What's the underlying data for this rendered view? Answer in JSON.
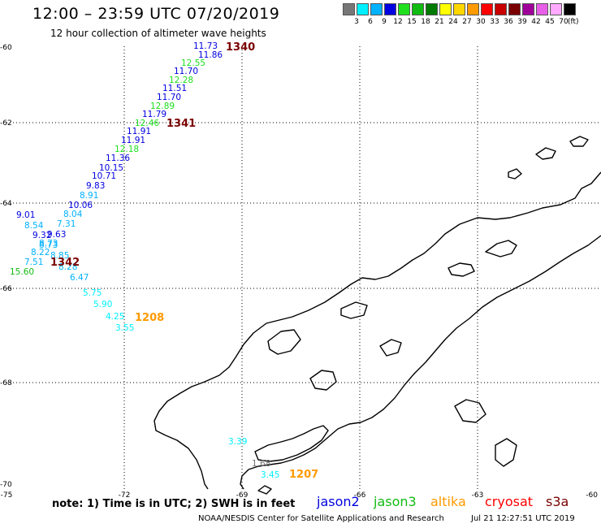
{
  "header": {
    "title": "12:00 – 23:59 UTC 07/20/2019",
    "subtitle": "12 hour collection of altimeter wave heights"
  },
  "scale": {
    "colors": [
      "#777777",
      "#00f0ff",
      "#00b2ff",
      "#0000e0",
      "#1ee01e",
      "#12bb12",
      "#007a00",
      "#ffff00",
      "#ffd700",
      "#ff9a00",
      "#ff0000",
      "#c80000",
      "#7a0000",
      "#a0009a",
      "#e85ee8",
      "#ffaaff",
      "#000000"
    ],
    "ticks": [
      "3",
      "6",
      "9",
      "12",
      "15",
      "18",
      "21",
      "24",
      "27",
      "30",
      "33",
      "36",
      "39",
      "42",
      "45",
      "70"
    ],
    "unit": "(ft)"
  },
  "axes": {
    "lat_labels": [
      "-60",
      "-62",
      "-64",
      "-66",
      "-68",
      "-70"
    ],
    "lon_labels": [
      "-75",
      "-72",
      "-69",
      "-66",
      "-63",
      "-60"
    ]
  },
  "observations": [
    {
      "text": "11.73",
      "color": "#0000e0"
    },
    {
      "text": "11.86",
      "color": "#0000e0"
    },
    {
      "text": "12.55",
      "color": "#1ee01e"
    },
    {
      "text": "11.70",
      "color": "#0000e0"
    },
    {
      "text": "12.28",
      "color": "#1ee01e"
    },
    {
      "text": "11.51",
      "color": "#0000e0"
    },
    {
      "text": "11.70",
      "color": "#0000e0"
    },
    {
      "text": "12.89",
      "color": "#1ee01e"
    },
    {
      "text": "11.79",
      "color": "#0000e0"
    },
    {
      "text": "12.46",
      "color": "#1ee01e"
    },
    {
      "text": "11.91",
      "color": "#0000e0"
    },
    {
      "text": "11.91",
      "color": "#0000e0"
    },
    {
      "text": "12.18",
      "color": "#1ee01e"
    },
    {
      "text": "11.36",
      "color": "#0000e0"
    },
    {
      "text": "10.15",
      "color": "#0000e0"
    },
    {
      "text": "10.71",
      "color": "#0000e0"
    },
    {
      "text": "9.83",
      "color": "#0000e0"
    },
    {
      "text": "8.91",
      "color": "#00b2ff"
    },
    {
      "text": "10.06",
      "color": "#0000e0"
    },
    {
      "text": "9.01",
      "color": "#0000e0"
    },
    {
      "text": "8.04",
      "color": "#00b2ff"
    },
    {
      "text": "8.54",
      "color": "#00b2ff"
    },
    {
      "text": "7.31",
      "color": "#00b2ff"
    },
    {
      "text": "9.32",
      "color": "#0000e0"
    },
    {
      "text": "9.63",
      "color": "#0000e0"
    },
    {
      "text": "8.73",
      "color": "#00b2ff"
    },
    {
      "text": "8.73",
      "color": "#00b2ff"
    },
    {
      "text": "8.22",
      "color": "#00b2ff"
    },
    {
      "text": "8.85",
      "color": "#00b2ff"
    },
    {
      "text": "7.51",
      "color": "#00b2ff"
    },
    {
      "text": "8.28",
      "color": "#00b2ff"
    },
    {
      "text": "15.60",
      "color": "#12bb12"
    },
    {
      "text": "6.47",
      "color": "#00b2ff"
    },
    {
      "text": "5.75",
      "color": "#00f0ff"
    },
    {
      "text": "5.90",
      "color": "#00f0ff"
    },
    {
      "text": "4.25",
      "color": "#00f0ff"
    },
    {
      "text": "3.55",
      "color": "#00f0ff"
    },
    {
      "text": "3.39",
      "color": "#00f0ff"
    },
    {
      "text": "1.68",
      "color": "#777777"
    },
    {
      "text": "3.45",
      "color": "#00f0ff"
    }
  ],
  "pass_times": [
    {
      "text": "1340",
      "color": "#7a0000"
    },
    {
      "text": "1341",
      "color": "#7a0000"
    },
    {
      "text": "1342",
      "color": "#7a0000"
    },
    {
      "text": "1208",
      "color": "#ff9a00"
    },
    {
      "text": "1207",
      "color": "#ff9a00"
    }
  ],
  "footer": {
    "note": "note:  1) Time is in UTC; 2) SWH is in feet",
    "legend": [
      {
        "label": "jason2",
        "color": "#0000e0"
      },
      {
        "label": "jason3",
        "color": "#12bb12"
      },
      {
        "label": "altika",
        "color": "#ff9a00"
      },
      {
        "label": "cryosat",
        "color": "#ff0000"
      },
      {
        "label": "s3a",
        "color": "#7a0000"
      }
    ],
    "credit": "NOAA/NESDIS Center for Satellite Applications and Research",
    "timestamp": "Jul 21 12:27:51 UTC 2019"
  }
}
